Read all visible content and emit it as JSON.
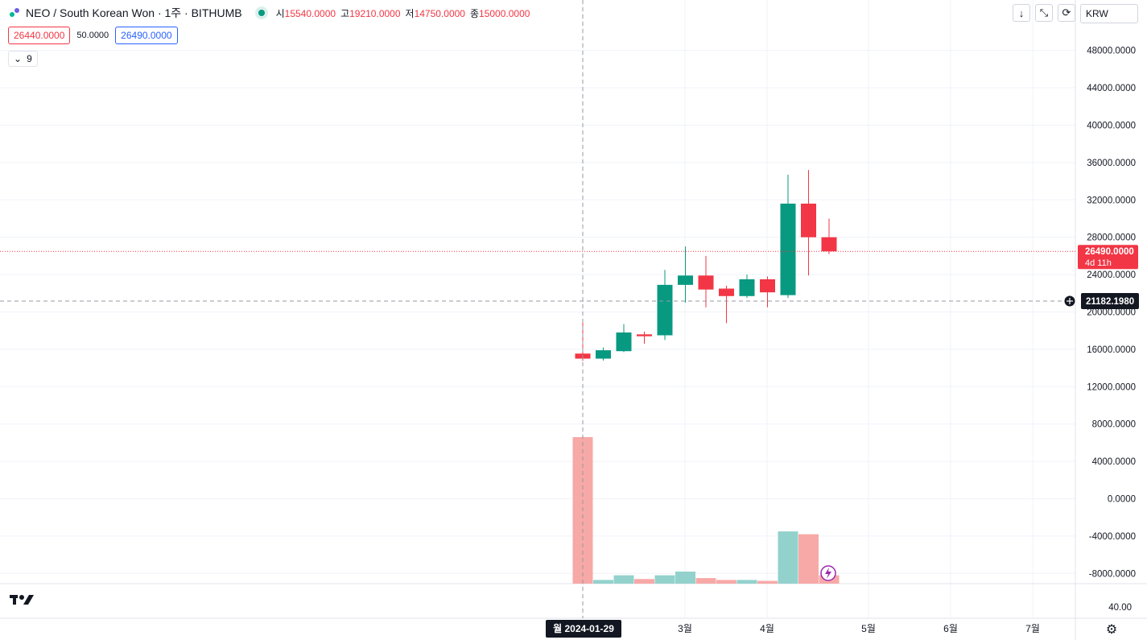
{
  "header": {
    "symbol": "NEO / South Korean Won · 1주 · BITHUMB",
    "ohlc": [
      {
        "label": "시",
        "value": "15540.0000"
      },
      {
        "label": "고",
        "value": "19210.0000"
      },
      {
        "label": "저",
        "value": "14750.0000"
      },
      {
        "label": "종",
        "value": "15000.0000"
      }
    ]
  },
  "quote": {
    "sell": "26440.0000",
    "spread": "50.0000",
    "buy": "26490.0000"
  },
  "indicators": {
    "count": "9"
  },
  "toolbar": {
    "currency": "KRW"
  },
  "colors": {
    "up": "#089981",
    "down": "#f23645",
    "up_vol": "#93d2cc",
    "down_vol": "#f7a9a7"
  },
  "chart_data": {
    "type": "candlestick",
    "price_axis_ticks": [
      "48000.0000",
      "44000.0000",
      "40000.0000",
      "36000.0000",
      "32000.0000",
      "28000.0000",
      "24000.0000",
      "20000.0000",
      "16000.0000",
      "12000.0000",
      "8000.0000",
      "4000.0000",
      "0.0000",
      "-4000.0000",
      "-8000.0000"
    ],
    "lower_pane_tick": "40.00",
    "time_axis_ticks": [
      "3월",
      "4월",
      "5월",
      "6월",
      "7월"
    ],
    "crosshair": {
      "time_label": "월 2024-01-29",
      "price_label": "21182.1980"
    },
    "last_price": {
      "value": 26490,
      "label": "26490.0000",
      "countdown": "4d 11h"
    },
    "candles": [
      {
        "o": 15540,
        "h": 19210,
        "l": 14750,
        "c": 15000
      },
      {
        "o": 15000,
        "h": 16200,
        "l": 14800,
        "c": 15900
      },
      {
        "o": 15800,
        "h": 18700,
        "l": 15700,
        "c": 17800
      },
      {
        "o": 17600,
        "h": 17900,
        "l": 16600,
        "c": 17400
      },
      {
        "o": 17500,
        "h": 24500,
        "l": 17000,
        "c": 22900
      },
      {
        "o": 22900,
        "h": 27000,
        "l": 21000,
        "c": 23900
      },
      {
        "o": 23900,
        "h": 26000,
        "l": 20500,
        "c": 22400
      },
      {
        "o": 22500,
        "h": 22800,
        "l": 18800,
        "c": 21700
      },
      {
        "o": 21700,
        "h": 24000,
        "l": 21500,
        "c": 23500
      },
      {
        "o": 23500,
        "h": 23800,
        "l": 20500,
        "c": 22100
      },
      {
        "o": 21800,
        "h": 34700,
        "l": 21500,
        "c": 31600
      },
      {
        "o": 31600,
        "h": 35200,
        "l": 23900,
        "c": 28000
      },
      {
        "o": 28000,
        "h": 30000,
        "l": 26200,
        "c": 26490
      }
    ],
    "volume": [
      {
        "v": 6600,
        "dir": "down"
      },
      {
        "v": -8700,
        "dir": "up"
      },
      {
        "v": -8200,
        "dir": "up"
      },
      {
        "v": -8600,
        "dir": "down"
      },
      {
        "v": -8200,
        "dir": "up"
      },
      {
        "v": -7800,
        "dir": "up"
      },
      {
        "v": -8500,
        "dir": "down"
      },
      {
        "v": -8700,
        "dir": "down"
      },
      {
        "v": -8700,
        "dir": "up"
      },
      {
        "v": -8800,
        "dir": "down"
      },
      {
        "v": -3500,
        "dir": "up"
      },
      {
        "v": -3800,
        "dir": "down"
      },
      {
        "v": -8200,
        "dir": "down"
      }
    ]
  }
}
